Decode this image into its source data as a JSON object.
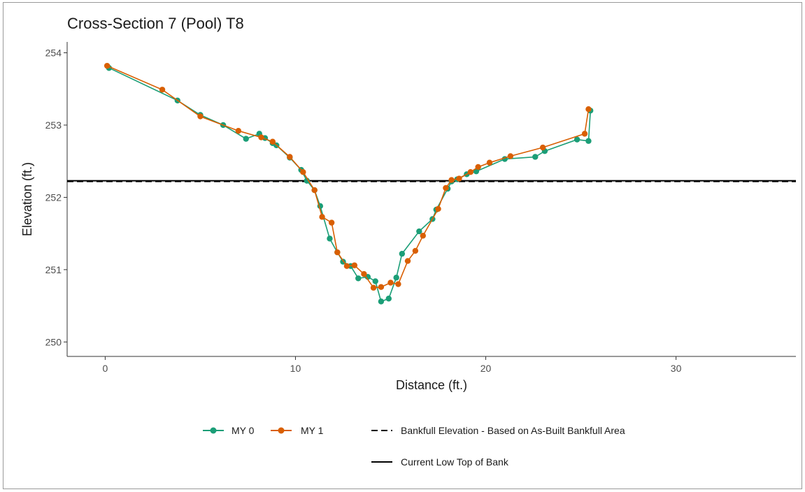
{
  "chart_data": {
    "type": "line",
    "title": "Cross-Section 7 (Pool) T8",
    "xlabel": "Distance (ft.)",
    "ylabel": "Elevation (ft.)",
    "xlim": [
      -2,
      36.3
    ],
    "ylim": [
      249.8,
      254.15
    ],
    "x_ticks": [
      0,
      10,
      20,
      30
    ],
    "y_ticks": [
      250,
      251,
      252,
      253,
      254
    ],
    "grid": false,
    "legend_position": "bottom",
    "series": [
      {
        "name": "MY 0",
        "color": "#1b9e77",
        "points": [
          [
            0.2,
            253.79
          ],
          [
            3.8,
            253.34
          ],
          [
            5.0,
            253.14
          ],
          [
            6.2,
            253.0
          ],
          [
            7.4,
            252.81
          ],
          [
            8.1,
            252.88
          ],
          [
            8.4,
            252.82
          ],
          [
            8.8,
            252.75
          ],
          [
            9.0,
            252.72
          ],
          [
            9.7,
            252.55
          ],
          [
            10.3,
            252.38
          ],
          [
            10.6,
            252.23
          ],
          [
            11.0,
            252.1
          ],
          [
            11.3,
            251.88
          ],
          [
            11.8,
            251.43
          ],
          [
            12.2,
            251.24
          ],
          [
            12.5,
            251.11
          ],
          [
            12.9,
            251.05
          ],
          [
            13.3,
            250.88
          ],
          [
            13.8,
            250.9
          ],
          [
            14.2,
            250.84
          ],
          [
            14.5,
            250.56
          ],
          [
            14.9,
            250.6
          ],
          [
            15.3,
            250.89
          ],
          [
            15.6,
            251.22
          ],
          [
            16.5,
            251.53
          ],
          [
            17.2,
            251.7
          ],
          [
            17.4,
            251.83
          ],
          [
            18.0,
            252.12
          ],
          [
            18.2,
            252.22
          ],
          [
            18.5,
            252.25
          ],
          [
            19.0,
            252.32
          ],
          [
            19.5,
            252.36
          ],
          [
            21.0,
            252.53
          ],
          [
            22.6,
            252.56
          ],
          [
            23.1,
            252.64
          ],
          [
            24.8,
            252.8
          ],
          [
            25.4,
            252.78
          ],
          [
            25.5,
            253.2
          ]
        ]
      },
      {
        "name": "MY 1",
        "color": "#d95f02",
        "points": [
          [
            0.1,
            253.82
          ],
          [
            3.0,
            253.49
          ],
          [
            5.0,
            253.12
          ],
          [
            7.0,
            252.92
          ],
          [
            8.2,
            252.83
          ],
          [
            8.8,
            252.77
          ],
          [
            9.7,
            252.56
          ],
          [
            10.4,
            252.35
          ],
          [
            11.0,
            252.1
          ],
          [
            11.4,
            251.73
          ],
          [
            11.9,
            251.65
          ],
          [
            12.2,
            251.24
          ],
          [
            12.7,
            251.05
          ],
          [
            13.1,
            251.06
          ],
          [
            13.6,
            250.94
          ],
          [
            14.1,
            250.75
          ],
          [
            14.5,
            250.76
          ],
          [
            15.0,
            250.82
          ],
          [
            15.4,
            250.8
          ],
          [
            15.9,
            251.12
          ],
          [
            16.3,
            251.26
          ],
          [
            16.7,
            251.47
          ],
          [
            17.5,
            251.84
          ],
          [
            17.9,
            252.13
          ],
          [
            18.2,
            252.24
          ],
          [
            18.6,
            252.26
          ],
          [
            19.2,
            252.35
          ],
          [
            19.6,
            252.42
          ],
          [
            20.2,
            252.48
          ],
          [
            21.3,
            252.57
          ],
          [
            23.0,
            252.69
          ],
          [
            25.2,
            252.88
          ],
          [
            25.4,
            253.22
          ]
        ]
      }
    ],
    "reference_lines": [
      {
        "name": "Bankfull Elevation - Based on As-Built Bankfull Area",
        "y": 252.22,
        "style": "dashed",
        "color": "#000000"
      },
      {
        "name": "Current Low Top of Bank",
        "y": 252.23,
        "style": "solid",
        "color": "#000000"
      }
    ]
  }
}
